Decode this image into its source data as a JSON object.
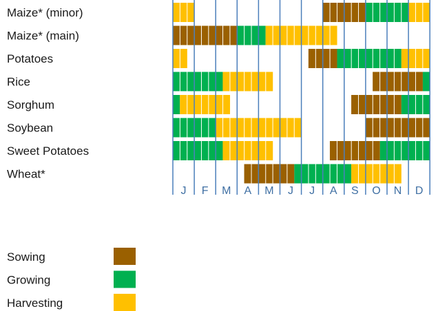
{
  "chart_data": {
    "type": "gantt",
    "months": [
      "J",
      "F",
      "M",
      "A",
      "M",
      "J",
      "J",
      "A",
      "S",
      "O",
      "N",
      "D"
    ],
    "crops": [
      {
        "name": "Maize* (minor)",
        "segments": [
          {
            "stage": "harvesting",
            "start": 0.0,
            "end": 1.0
          },
          {
            "stage": "sowing",
            "start": 7.0,
            "end": 9.0
          },
          {
            "stage": "growing",
            "start": 9.0,
            "end": 11.0
          },
          {
            "stage": "harvesting",
            "start": 11.0,
            "end": 12.0
          }
        ]
      },
      {
        "name": "Maize* (main)",
        "segments": [
          {
            "stage": "sowing",
            "start": 0.0,
            "end": 3.0
          },
          {
            "stage": "growing",
            "start": 3.0,
            "end": 4.33
          },
          {
            "stage": "harvesting",
            "start": 4.33,
            "end": 7.67
          }
        ]
      },
      {
        "name": "Potatoes",
        "segments": [
          {
            "stage": "harvesting",
            "start": 0.0,
            "end": 0.67
          },
          {
            "stage": "sowing",
            "start": 6.33,
            "end": 7.67
          },
          {
            "stage": "growing",
            "start": 7.67,
            "end": 10.67
          },
          {
            "stage": "harvesting",
            "start": 10.67,
            "end": 12.0
          }
        ]
      },
      {
        "name": "Rice",
        "segments": [
          {
            "stage": "growing",
            "start": 0.0,
            "end": 2.33
          },
          {
            "stage": "harvesting",
            "start": 2.33,
            "end": 4.67
          },
          {
            "stage": "sowing",
            "start": 9.33,
            "end": 11.67
          },
          {
            "stage": "growing",
            "start": 11.67,
            "end": 12.0
          }
        ]
      },
      {
        "name": "Sorghum",
        "segments": [
          {
            "stage": "growing",
            "start": 0.0,
            "end": 0.33
          },
          {
            "stage": "harvesting",
            "start": 0.33,
            "end": 2.67
          },
          {
            "stage": "sowing",
            "start": 8.33,
            "end": 10.67
          },
          {
            "stage": "growing",
            "start": 10.67,
            "end": 12.0
          }
        ]
      },
      {
        "name": "Soybean",
        "segments": [
          {
            "stage": "growing",
            "start": 0.0,
            "end": 2.0
          },
          {
            "stage": "harvesting",
            "start": 2.0,
            "end": 6.0
          },
          {
            "stage": "sowing",
            "start": 9.0,
            "end": 12.0
          }
        ]
      },
      {
        "name": "Sweet Potatoes",
        "segments": [
          {
            "stage": "growing",
            "start": 0.0,
            "end": 2.33
          },
          {
            "stage": "harvesting",
            "start": 2.33,
            "end": 4.67
          },
          {
            "stage": "sowing",
            "start": 7.33,
            "end": 9.67
          },
          {
            "stage": "growing",
            "start": 9.67,
            "end": 12.0
          }
        ]
      },
      {
        "name": "Wheat*",
        "segments": [
          {
            "stage": "sowing",
            "start": 3.33,
            "end": 5.67
          },
          {
            "stage": "growing",
            "start": 5.67,
            "end": 8.33
          },
          {
            "stage": "harvesting",
            "start": 8.33,
            "end": 10.67
          }
        ]
      }
    ],
    "legend": [
      {
        "stage": "sowing",
        "label": "Sowing",
        "color": "#9a6000"
      },
      {
        "stage": "growing",
        "label": "Growing",
        "color": "#00b050"
      },
      {
        "stage": "harvesting",
        "label": "Harvesting",
        "color": "#ffc000"
      }
    ],
    "grid_color": "#4a7ebb",
    "cell_divider_color": "#ffffff",
    "title": "",
    "xlabel": "",
    "ylabel": ""
  }
}
